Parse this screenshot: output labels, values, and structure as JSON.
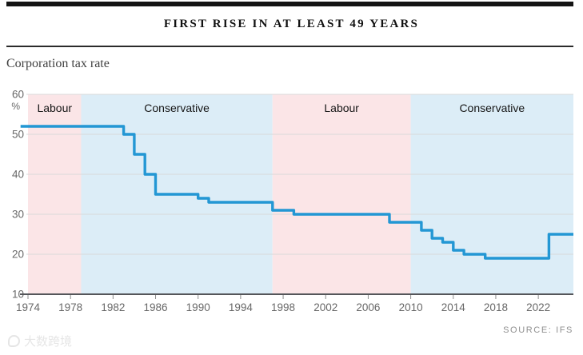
{
  "header": {
    "title": "FIRST RISE IN AT LEAST 49 YEARS",
    "subtitle": "Corporation tax rate"
  },
  "footer": {
    "source": "SOURCE: IFS"
  },
  "watermark": {
    "text": "大数跨境",
    "logo": "bird-logo-icon"
  },
  "chart_data": {
    "type": "line",
    "subtype": "step",
    "title": "FIRST RISE IN AT LEAST 49 YEARS",
    "subtitle": "Corporation tax rate",
    "unit_label": "%",
    "xlim": [
      1973.3,
      2025.3
    ],
    "ylim": [
      10,
      60
    ],
    "grid": "horizontal-only",
    "x_ticks": [
      1974,
      1978,
      1982,
      1986,
      1990,
      1994,
      1998,
      2002,
      2006,
      2010,
      2014,
      2018,
      2022
    ],
    "y_ticks": [
      10,
      20,
      30,
      40,
      50,
      60
    ],
    "series": [
      {
        "name": "Corporation tax rate (%)",
        "end_year": 2025.3,
        "steps": [
          {
            "year": 1974,
            "rate": 52
          },
          {
            "year": 1983,
            "rate": 50
          },
          {
            "year": 1984,
            "rate": 45
          },
          {
            "year": 1985,
            "rate": 40
          },
          {
            "year": 1986,
            "rate": 35
          },
          {
            "year": 1990,
            "rate": 34
          },
          {
            "year": 1991,
            "rate": 33
          },
          {
            "year": 1997,
            "rate": 31
          },
          {
            "year": 1999,
            "rate": 30
          },
          {
            "year": 2008,
            "rate": 28
          },
          {
            "year": 2011,
            "rate": 26
          },
          {
            "year": 2012,
            "rate": 24
          },
          {
            "year": 2013,
            "rate": 23
          },
          {
            "year": 2014,
            "rate": 21
          },
          {
            "year": 2015,
            "rate": 20
          },
          {
            "year": 2017,
            "rate": 19
          },
          {
            "year": 2023,
            "rate": 25
          }
        ]
      }
    ],
    "bands": [
      {
        "label": "Labour",
        "party": "labour",
        "from": 1974,
        "to": 1979
      },
      {
        "label": "Conservative",
        "party": "conservative",
        "from": 1979,
        "to": 1997
      },
      {
        "label": "Labour",
        "party": "labour",
        "from": 1997,
        "to": 2010
      },
      {
        "label": "Conservative",
        "party": "conservative",
        "from": 2010,
        "to": 2025.3
      }
    ],
    "colors": {
      "line": "#2397d4",
      "labour": "#fbe5e7",
      "conservative": "#dcedf7",
      "grid": "#d9d9d9",
      "baseline": "#55565a",
      "tick": "#8c8c8c",
      "tick_label": "#686868",
      "band_label": "#151515"
    },
    "source": "SOURCE: IFS",
    "legend": "none"
  }
}
